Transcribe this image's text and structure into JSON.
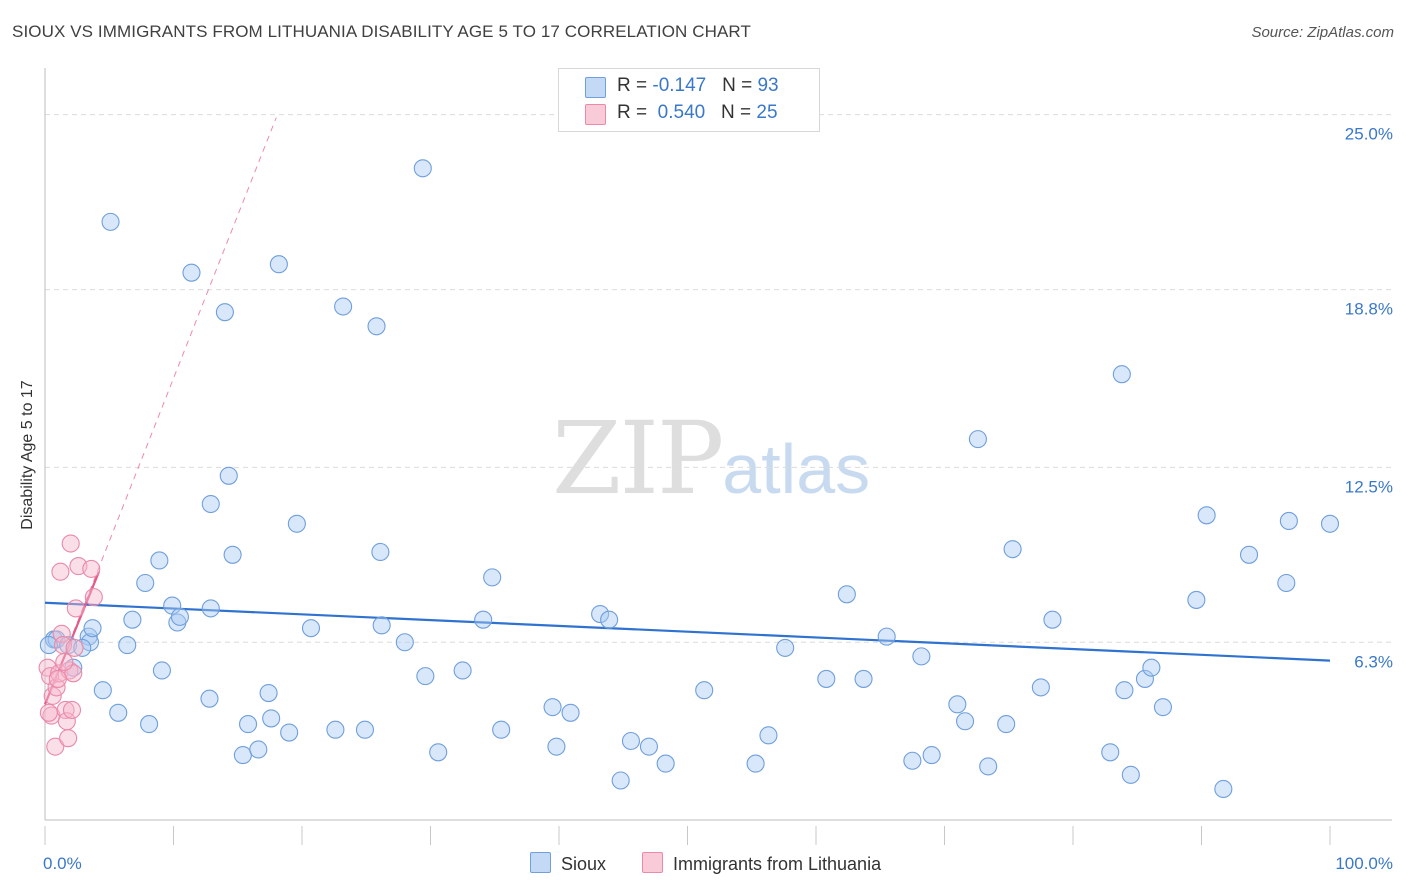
{
  "header": {
    "title": "SIOUX VS IMMIGRANTS FROM LITHUANIA DISABILITY AGE 5 TO 17 CORRELATION CHART",
    "source": "Source: ZipAtlas.com"
  },
  "watermark": {
    "zip": "ZIP",
    "atlas": "atlas"
  },
  "legend": {
    "rows": [
      {
        "r_label": "R = ",
        "r_value": "-0.147",
        "n_label": "N = ",
        "n_value": "93"
      },
      {
        "r_label": "R = ",
        "r_value": "0.540",
        "n_label": "N = ",
        "n_value": "25"
      }
    ]
  },
  "bottom_legend": [
    "Sioux",
    "Immigrants from Lithuania"
  ],
  "colors": {
    "sioux_fill": "#a9c9f1",
    "sioux_stroke": "#6f9fdc",
    "sioux_line": "#2f72d0",
    "lith_fill": "#f6b9cb",
    "lith_stroke": "#e98aa8",
    "lith_line": "#e45a8a",
    "grid": "#dcdcdc",
    "tick_text": "#3a78c9"
  },
  "chart_data": {
    "type": "scatter",
    "title": "SIOUX VS IMMIGRANTS FROM LITHUANIA DISABILITY AGE 5 TO 17 CORRELATION CHART",
    "xlabel": "",
    "ylabel": "Disability Age 5 to 17",
    "xlim": [
      0,
      100
    ],
    "ylim": [
      0,
      26.3
    ],
    "x_tick_labels": [
      "0.0%",
      "100.0%"
    ],
    "y_ticks": [
      6.3,
      12.5,
      18.8,
      25.0
    ],
    "y_tick_labels": [
      "6.3%",
      "12.5%",
      "18.8%",
      "25.0%"
    ],
    "series": [
      {
        "name": "Sioux",
        "r": -0.147,
        "n": 93,
        "trend": {
          "x": [
            0,
            100
          ],
          "y": [
            7.7,
            5.65
          ]
        },
        "points": [
          [
            0.7,
            6.4
          ],
          [
            0.9,
            6.4
          ],
          [
            1.8,
            6.2
          ],
          [
            2.2,
            5.4
          ],
          [
            3.4,
            6.5
          ],
          [
            3.5,
            6.3
          ],
          [
            3.7,
            6.8
          ],
          [
            4.5,
            4.6
          ],
          [
            5.1,
            21.2
          ],
          [
            5.7,
            3.8
          ],
          [
            6.4,
            6.2
          ],
          [
            6.8,
            7.1
          ],
          [
            7.8,
            8.4
          ],
          [
            8.1,
            3.4
          ],
          [
            8.9,
            9.2
          ],
          [
            9.1,
            5.3
          ],
          [
            9.9,
            7.6
          ],
          [
            10.3,
            7.0
          ],
          [
            10.5,
            7.2
          ],
          [
            11.4,
            19.4
          ],
          [
            12.9,
            11.2
          ],
          [
            12.9,
            7.5
          ],
          [
            12.8,
            4.3
          ],
          [
            14.0,
            18.0
          ],
          [
            14.3,
            12.2
          ],
          [
            14.6,
            9.4
          ],
          [
            15.4,
            2.3
          ],
          [
            15.8,
            3.4
          ],
          [
            16.6,
            2.5
          ],
          [
            17.4,
            4.5
          ],
          [
            17.6,
            3.6
          ],
          [
            18.2,
            19.7
          ],
          [
            19.0,
            3.1
          ],
          [
            19.6,
            10.5
          ],
          [
            20.7,
            6.8
          ],
          [
            22.6,
            3.2
          ],
          [
            23.2,
            18.2
          ],
          [
            24.9,
            3.2
          ],
          [
            25.8,
            17.5
          ],
          [
            26.1,
            9.5
          ],
          [
            26.2,
            6.9
          ],
          [
            28.0,
            6.3
          ],
          [
            29.4,
            23.1
          ],
          [
            29.6,
            5.1
          ],
          [
            30.6,
            2.4
          ],
          [
            32.5,
            5.3
          ],
          [
            34.1,
            7.1
          ],
          [
            34.8,
            8.6
          ],
          [
            35.5,
            3.2
          ],
          [
            39.5,
            4.0
          ],
          [
            39.8,
            2.6
          ],
          [
            40.9,
            3.8
          ],
          [
            43.2,
            7.3
          ],
          [
            43.9,
            7.1
          ],
          [
            44.8,
            1.4
          ],
          [
            45.6,
            2.8
          ],
          [
            47.0,
            2.6
          ],
          [
            48.3,
            2.0
          ],
          [
            51.3,
            4.6
          ],
          [
            55.3,
            2.0
          ],
          [
            56.3,
            3.0
          ],
          [
            57.6,
            6.1
          ],
          [
            60.8,
            5.0
          ],
          [
            62.4,
            8.0
          ],
          [
            63.7,
            5.0
          ],
          [
            65.5,
            6.5
          ],
          [
            67.5,
            2.1
          ],
          [
            68.2,
            5.8
          ],
          [
            69.0,
            2.3
          ],
          [
            71.0,
            4.1
          ],
          [
            71.6,
            3.5
          ],
          [
            72.6,
            13.5
          ],
          [
            73.4,
            1.9
          ],
          [
            74.8,
            3.4
          ],
          [
            75.3,
            9.6
          ],
          [
            77.5,
            4.7
          ],
          [
            78.4,
            7.1
          ],
          [
            82.9,
            2.4
          ],
          [
            83.8,
            15.8
          ],
          [
            84.0,
            4.6
          ],
          [
            84.5,
            1.6
          ],
          [
            85.6,
            5.0
          ],
          [
            86.1,
            5.4
          ],
          [
            87.0,
            4.0
          ],
          [
            89.6,
            7.8
          ],
          [
            90.4,
            10.8
          ],
          [
            91.7,
            1.1
          ],
          [
            93.7,
            9.4
          ],
          [
            96.6,
            8.4
          ],
          [
            96.8,
            10.6
          ],
          [
            100.0,
            10.5
          ],
          [
            0.3,
            6.2
          ],
          [
            2.9,
            6.1
          ]
        ]
      },
      {
        "name": "Immigrants from Lithuania",
        "r": 0.54,
        "n": 25,
        "trend": {
          "x": [
            0,
            4.2
          ],
          "y": [
            4.1,
            8.8
          ]
        },
        "trend_extended": {
          "x": [
            0,
            18.0
          ],
          "y": [
            4.1,
            24.9
          ]
        },
        "points": [
          [
            0.2,
            5.4
          ],
          [
            0.4,
            5.1
          ],
          [
            0.5,
            3.7
          ],
          [
            0.6,
            4.4
          ],
          [
            0.8,
            2.6
          ],
          [
            0.9,
            4.7
          ],
          [
            1.1,
            5.2
          ],
          [
            1.2,
            8.8
          ],
          [
            1.3,
            6.6
          ],
          [
            1.4,
            6.2
          ],
          [
            1.6,
            3.9
          ],
          [
            1.7,
            3.5
          ],
          [
            1.8,
            2.9
          ],
          [
            1.9,
            5.3
          ],
          [
            2.0,
            9.8
          ],
          [
            2.1,
            3.9
          ],
          [
            2.2,
            5.2
          ],
          [
            2.3,
            6.1
          ],
          [
            2.4,
            7.5
          ],
          [
            2.6,
            9.0
          ],
          [
            3.6,
            8.9
          ],
          [
            3.8,
            7.9
          ],
          [
            0.3,
            3.8
          ],
          [
            1.0,
            5.0
          ],
          [
            1.5,
            5.6
          ]
        ]
      }
    ]
  }
}
